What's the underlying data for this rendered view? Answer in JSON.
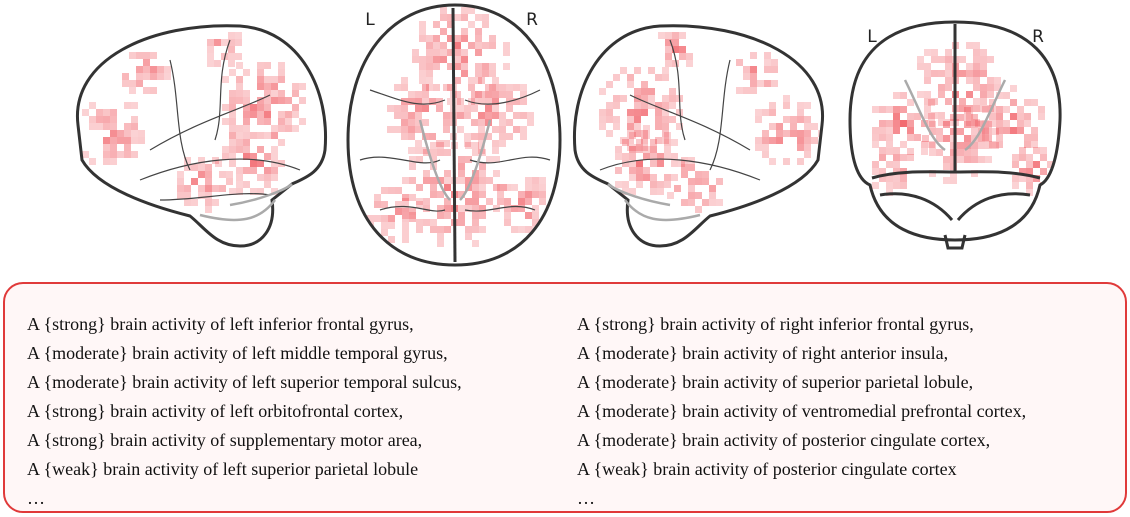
{
  "figure": {
    "orientation_labels": [
      "L",
      "R",
      "L",
      "R"
    ]
  },
  "description": {
    "left": [
      "A {strong} brain activity of left inferior frontal gyrus,",
      "A {moderate} brain activity of left middle temporal gyrus,",
      "A {moderate} brain activity of left superior temporal sulcus,",
      "A {strong} brain activity of left orbitofrontal cortex,",
      "A {strong} brain activity of supplementary motor area,",
      "A {weak} brain activity of left superior parietal lobule",
      "…"
    ],
    "right": [
      "A {strong} brain activity of right inferior frontal gyrus,",
      "A {moderate} brain activity of right anterior insula,",
      "A {moderate} brain activity of superior parietal lobule,",
      "A {moderate} brain activity of ventromedial prefrontal cortex,",
      "A {moderate} brain activity of posterior cingulate cortex,",
      "A {weak} brain activity of posterior cingulate cortex",
      "…"
    ]
  }
}
